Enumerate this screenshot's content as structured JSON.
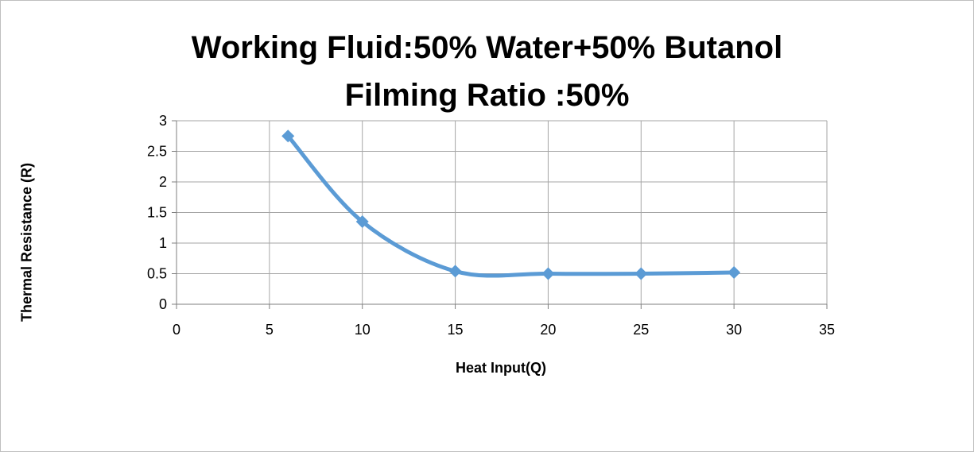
{
  "chart_data": {
    "type": "line",
    "title_lines": [
      "Working Fluid:50% Water+50% Butanol",
      "Filming Ratio :50%"
    ],
    "xlabel": "Heat Input(Q)",
    "ylabel": "Thermal Resistance (R)",
    "xlim": [
      0,
      35
    ],
    "ylim": [
      0,
      3
    ],
    "x_ticks": [
      0,
      5,
      10,
      15,
      20,
      25,
      30,
      35
    ],
    "y_ticks": [
      0,
      0.5,
      1,
      1.5,
      2,
      2.5,
      3
    ],
    "grid": true,
    "smooth": true,
    "series": [
      {
        "color": "#5b9bd5",
        "marker": "diamond",
        "x": [
          6,
          10,
          15,
          20,
          25,
          30
        ],
        "y": [
          2.75,
          1.35,
          0.54,
          0.5,
          0.5,
          0.52
        ]
      }
    ]
  }
}
